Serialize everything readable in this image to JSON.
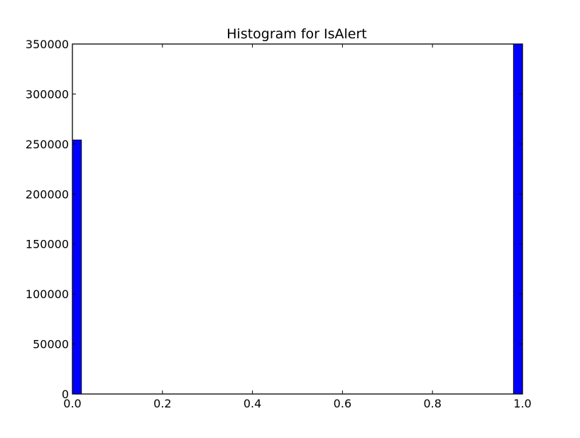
{
  "chart_data": {
    "type": "bar",
    "title": "Histogram for IsAlert",
    "xlabel": "",
    "ylabel": "",
    "xlim": [
      0.0,
      1.0
    ],
    "ylim": [
      0,
      350000
    ],
    "grid": false,
    "bar_color": "#0000ff",
    "edge_color": "#000000",
    "bins": [
      {
        "x0": 0.0,
        "x1": 0.02,
        "value": 254000
      },
      {
        "x0": 0.98,
        "x1": 1.0,
        "value": 350000
      }
    ],
    "xticks": [
      0.0,
      0.2,
      0.4,
      0.6,
      0.8,
      1.0
    ],
    "xtick_labels": [
      "0.0",
      "0.2",
      "0.4",
      "0.6",
      "0.8",
      "1.0"
    ],
    "yticks": [
      0,
      50000,
      100000,
      150000,
      200000,
      250000,
      300000,
      350000
    ],
    "ytick_labels": [
      "0",
      "50000",
      "100000",
      "150000",
      "200000",
      "250000",
      "300000",
      "350000"
    ]
  }
}
